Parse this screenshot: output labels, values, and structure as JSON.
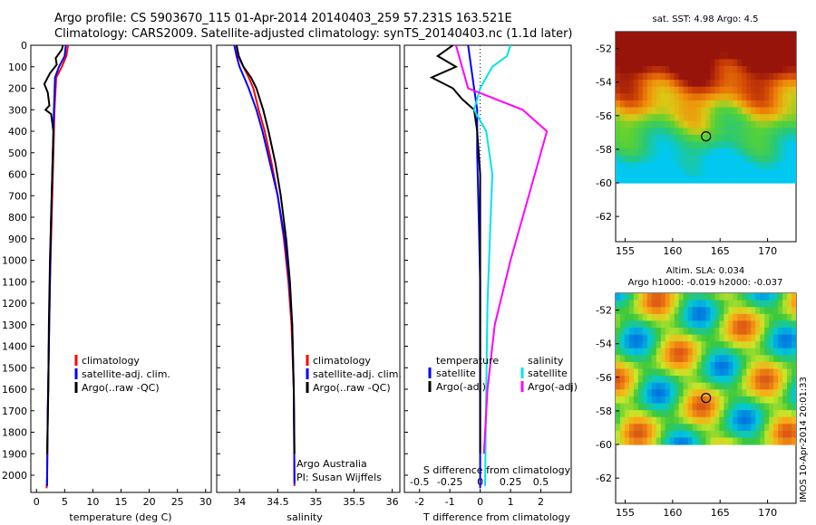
{
  "header": {
    "line1": "Argo profile: CS 5903670_115 01-Apr-2014 20140403_259 57.231S 163.521E",
    "line2": "Climatology: CARS2009. Satellite-adjusted climatology: synTS_20140403.nc (1.1d later)"
  },
  "side_stamp": "IMOS 10-Apr-2014 20:01:33",
  "colors": {
    "climatology": "#ff0000",
    "satellite": "#0000ff",
    "argo": "#000000",
    "sal_satellite": "#00e5e5",
    "sal_argo": "#ff00ff"
  },
  "chart_data": [
    {
      "type": "line",
      "id": "temperature",
      "xlabel": "temperature (deg C)",
      "ylabel": "",
      "xlim": [
        -1,
        31
      ],
      "ylim": [
        2080,
        0
      ],
      "xticks": [
        0,
        5,
        10,
        15,
        20,
        25,
        30
      ],
      "yticks": [
        0,
        100,
        200,
        300,
        400,
        500,
        600,
        700,
        800,
        900,
        1000,
        1100,
        1200,
        1300,
        1400,
        1500,
        1600,
        1700,
        1800,
        1900,
        2000
      ],
      "legend": [
        "climatology",
        "satellite-adj. clim.",
        "Argo(..raw -QC)"
      ],
      "series": [
        {
          "name": "climatology",
          "color": "#ff0000",
          "points": [
            [
              5.6,
              0
            ],
            [
              5.3,
              50
            ],
            [
              4.5,
              100
            ],
            [
              3.5,
              150
            ],
            [
              3.2,
              300
            ],
            [
              3.0,
              500
            ],
            [
              2.7,
              800
            ],
            [
              2.4,
              1100
            ],
            [
              2.2,
              1400
            ],
            [
              2.0,
              1700
            ],
            [
              1.9,
              2000
            ],
            [
              1.8,
              2060
            ]
          ]
        },
        {
          "name": "satellite-adj. clim.",
          "color": "#0000ff",
          "points": [
            [
              5.2,
              0
            ],
            [
              5.0,
              50
            ],
            [
              4.0,
              100
            ],
            [
              3.3,
              150
            ],
            [
              3.1,
              300
            ],
            [
              2.9,
              500
            ],
            [
              2.6,
              800
            ],
            [
              2.4,
              1100
            ],
            [
              2.2,
              1400
            ],
            [
              2.0,
              1700
            ],
            [
              1.9,
              2000
            ],
            [
              1.9,
              2050
            ]
          ]
        },
        {
          "name": "Argo(..raw -QC)",
          "color": "#000000",
          "points": [
            [
              4.7,
              0
            ],
            [
              4.5,
              20
            ],
            [
              3.4,
              60
            ],
            [
              3.6,
              90
            ],
            [
              2.4,
              130
            ],
            [
              1.4,
              180
            ],
            [
              2.0,
              220
            ],
            [
              2.3,
              280
            ],
            [
              1.6,
              300
            ],
            [
              2.6,
              320
            ],
            [
              3.0,
              400
            ],
            [
              2.9,
              500
            ],
            [
              2.7,
              700
            ],
            [
              2.4,
              1000
            ],
            [
              2.2,
              1300
            ],
            [
              2.1,
              1600
            ],
            [
              1.9,
              1900
            ]
          ]
        }
      ]
    },
    {
      "type": "line",
      "id": "salinity",
      "xlabel": "salinity",
      "ylabel": "",
      "xlim": [
        33.7,
        36.1
      ],
      "ylim": [
        2080,
        0
      ],
      "xticks": [
        34,
        34.5,
        35,
        35.5,
        36
      ],
      "legend": [
        "climatology",
        "satellite-adj. clim.",
        "Argo(..raw -QC)"
      ],
      "annotation": [
        "Argo Australia",
        "PI: Susan Wijffels"
      ],
      "series": [
        {
          "name": "climatology",
          "color": "#ff0000",
          "points": [
            [
              33.96,
              0
            ],
            [
              33.98,
              50
            ],
            [
              34.05,
              100
            ],
            [
              34.12,
              150
            ],
            [
              34.18,
              200
            ],
            [
              34.25,
              300
            ],
            [
              34.33,
              400
            ],
            [
              34.42,
              550
            ],
            [
              34.5,
              700
            ],
            [
              34.58,
              900
            ],
            [
              34.64,
              1100
            ],
            [
              34.68,
              1300
            ],
            [
              34.71,
              1600
            ],
            [
              34.72,
              2050
            ]
          ]
        },
        {
          "name": "satellite-adj. clim.",
          "color": "#0000ff",
          "points": [
            [
              33.93,
              0
            ],
            [
              33.96,
              50
            ],
            [
              34.0,
              100
            ],
            [
              34.06,
              150
            ],
            [
              34.12,
              200
            ],
            [
              34.22,
              300
            ],
            [
              34.3,
              400
            ],
            [
              34.4,
              550
            ],
            [
              34.5,
              700
            ],
            [
              34.59,
              900
            ],
            [
              34.65,
              1100
            ],
            [
              34.69,
              1300
            ],
            [
              34.71,
              1600
            ],
            [
              34.72,
              2040
            ]
          ]
        },
        {
          "name": "Argo(..raw -QC)",
          "color": "#000000",
          "points": [
            [
              33.96,
              0
            ],
            [
              33.99,
              50
            ],
            [
              34.05,
              100
            ],
            [
              34.15,
              150
            ],
            [
              34.22,
              200
            ],
            [
              34.31,
              300
            ],
            [
              34.38,
              400
            ],
            [
              34.47,
              550
            ],
            [
              34.54,
              700
            ],
            [
              34.61,
              900
            ],
            [
              34.66,
              1100
            ],
            [
              34.69,
              1300
            ],
            [
              34.71,
              1600
            ],
            [
              34.72,
              1900
            ]
          ]
        }
      ]
    },
    {
      "type": "line",
      "id": "difference",
      "xlabel": "T difference from climatology",
      "xlabel2": "S difference from climatology",
      "xlim": [
        -2.5,
        3
      ],
      "ylim": [
        2080,
        0
      ],
      "xticks": [
        -2,
        -1,
        0,
        1,
        2
      ],
      "xticks_s": [
        "-0.5",
        "-0.25",
        "0",
        "0.25",
        "0.5"
      ],
      "xticks_s_values": [
        -0.5,
        -0.25,
        0,
        0.25,
        0.5
      ],
      "legend_temperature_title": "temperature",
      "legend_salinity_title": "salinity",
      "legend": [
        "satellite",
        "Argo(-adj)",
        "satellite",
        "Argo(-adj)"
      ],
      "series": [
        {
          "name": "temperature satellite",
          "color": "#0000ff",
          "points": [
            [
              -0.4,
              0
            ],
            [
              -0.3,
              100
            ],
            [
              -0.2,
              200
            ],
            [
              -0.1,
              300
            ],
            [
              -0.1,
              500
            ],
            [
              -0.05,
              800
            ],
            [
              0,
              1100
            ],
            [
              0,
              1600
            ],
            [
              0,
              2060
            ]
          ]
        },
        {
          "name": "temperature Argo(-adj)",
          "color": "#000000",
          "points": [
            [
              -0.9,
              0
            ],
            [
              -1.4,
              50
            ],
            [
              -0.8,
              100
            ],
            [
              -1.6,
              150
            ],
            [
              -0.9,
              200
            ],
            [
              -0.6,
              250
            ],
            [
              -0.2,
              300
            ],
            [
              -0.1,
              400
            ],
            [
              0,
              600
            ],
            [
              0,
              900
            ],
            [
              0,
              1200
            ],
            [
              0,
              1500
            ],
            [
              0,
              1800
            ],
            [
              0,
              1900
            ]
          ]
        },
        {
          "name": "salinity satellite",
          "color": "#00e5e5",
          "points": [
            [
              0.25,
              0
            ],
            [
              0.22,
              50
            ],
            [
              0.1,
              100
            ],
            [
              0.0,
              200
            ],
            [
              -0.05,
              300
            ],
            [
              0.05,
              400
            ],
            [
              0.1,
              600
            ],
            [
              0.08,
              900
            ],
            [
              0.06,
              1200
            ],
            [
              0.05,
              1600
            ],
            [
              0.04,
              2050
            ]
          ]
        },
        {
          "name": "salinity Argo(-adj)",
          "color": "#ff00ff",
          "points": [
            [
              -0.2,
              0
            ],
            [
              -0.15,
              100
            ],
            [
              -0.1,
              200
            ],
            [
              0.35,
              300
            ],
            [
              0.55,
              400
            ],
            [
              0.45,
              600
            ],
            [
              0.35,
              800
            ],
            [
              0.25,
              1000
            ],
            [
              0.12,
              1300
            ],
            [
              0.06,
              1600
            ],
            [
              0.03,
              1900
            ]
          ]
        }
      ]
    },
    {
      "type": "heatmap",
      "id": "sst_map",
      "title": "sat. SST: 4.98 Argo: 4.5",
      "xlim": [
        154,
        173
      ],
      "ylim": [
        -63.5,
        -51
      ],
      "xticks": [
        155,
        160,
        165,
        170
      ],
      "yticks": [
        -52,
        -54,
        -56,
        -58,
        -60,
        -62
      ],
      "data_extent_bottom": -60,
      "argo_position": [
        163.52,
        -57.23
      ]
    },
    {
      "type": "heatmap",
      "id": "sla_map",
      "title": "Altim. SLA: 0.034",
      "subtitle": "Argo h1000: -0.019 h2000: -0.037",
      "xlim": [
        154,
        173
      ],
      "ylim": [
        -63.5,
        -51
      ],
      "xticks": [
        155,
        160,
        165,
        170
      ],
      "yticks": [
        -52,
        -54,
        -56,
        -58,
        -60,
        -62
      ],
      "data_extent_bottom": -60,
      "argo_position": [
        163.52,
        -57.23
      ]
    }
  ]
}
